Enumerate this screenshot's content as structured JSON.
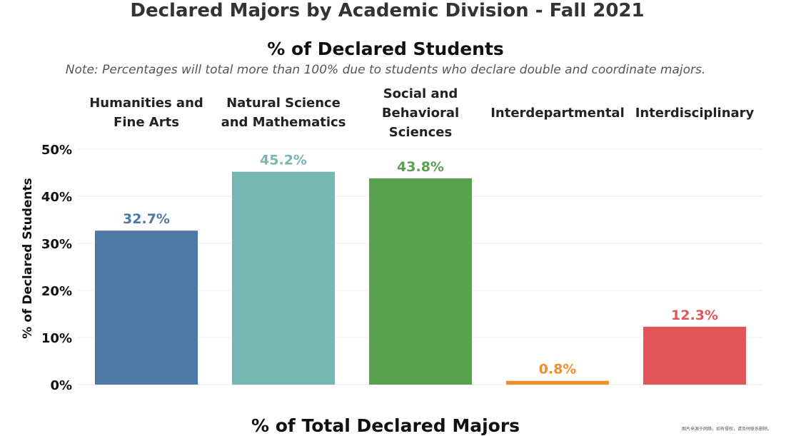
{
  "chart_data": {
    "type": "bar",
    "title": "Declared Majors by Academic Division - Fall 2021",
    "subtitle": "% of Declared Students",
    "note": "Note: Percentages will total more than 100% due to students who declare double and coordinate majors.",
    "y_label": "% of Declared Students",
    "x_label": "% of Total Declared Majors",
    "watermark": "图片来源于网络，如有侵权，请及时联系删除。",
    "categories": [
      "Humanities and Fine Arts",
      "Natural Science and Mathematics",
      "Social and Behavioral Sciences",
      "Interdepartmental",
      "Interdisciplinary"
    ],
    "values": [
      32.7,
      45.2,
      43.8,
      0.8,
      12.3
    ],
    "value_labels": [
      "32.7%",
      "45.2%",
      "43.8%",
      "0.8%",
      "12.3%"
    ],
    "colors": [
      "#4e79a7",
      "#76b7b2",
      "#59a14f",
      "#f28e2b",
      "#e15759"
    ],
    "ylim": [
      0,
      50
    ],
    "yticks": [
      {
        "value": 0,
        "label": "0%"
      },
      {
        "value": 10,
        "label": "10%"
      },
      {
        "value": 20,
        "label": "20%"
      },
      {
        "value": 30,
        "label": "30%"
      },
      {
        "value": 40,
        "label": "40%"
      },
      {
        "value": 50,
        "label": "50%"
      }
    ],
    "grid": true
  }
}
